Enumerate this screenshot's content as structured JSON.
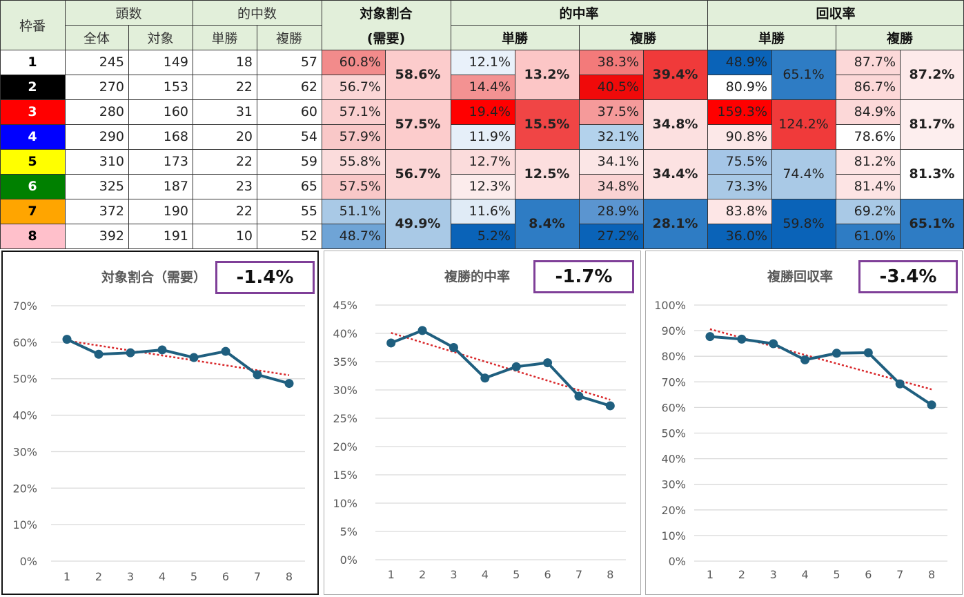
{
  "table": {
    "headers": {
      "waku": "枠番",
      "tousu": "頭数",
      "zentai": "全体",
      "taisho": "対象",
      "tekichu": "的中数",
      "tansho": "単勝",
      "fukusho": "複勝",
      "wariai": "対象割合",
      "juyo": "(需要)",
      "tekichuritsu": "的中率",
      "kaishuritsu": "回収率"
    },
    "rows": [
      {
        "waku": "1",
        "zentai": "245",
        "taisho": "149",
        "tan": "18",
        "fuku": "57",
        "wariai": "60.8%",
        "tanRate": "12.1%",
        "fukuRate": "38.3%",
        "tanRet": "48.9%",
        "fukuRet": "87.7%"
      },
      {
        "waku": "2",
        "zentai": "270",
        "taisho": "153",
        "tan": "22",
        "fuku": "62",
        "wariai": "56.7%",
        "tanRate": "14.4%",
        "fukuRate": "40.5%",
        "tanRet": "80.9%",
        "fukuRet": "86.7%"
      },
      {
        "waku": "3",
        "zentai": "280",
        "taisho": "160",
        "tan": "31",
        "fuku": "60",
        "wariai": "57.1%",
        "tanRate": "19.4%",
        "fukuRate": "37.5%",
        "tanRet": "159.3%",
        "fukuRet": "84.9%"
      },
      {
        "waku": "4",
        "zentai": "290",
        "taisho": "168",
        "tan": "20",
        "fuku": "54",
        "wariai": "57.9%",
        "tanRate": "11.9%",
        "fukuRate": "32.1%",
        "tanRet": "90.8%",
        "fukuRet": "78.6%"
      },
      {
        "waku": "5",
        "zentai": "310",
        "taisho": "173",
        "tan": "22",
        "fuku": "59",
        "wariai": "55.8%",
        "tanRate": "12.7%",
        "fukuRate": "34.1%",
        "tanRet": "75.5%",
        "fukuRet": "81.2%"
      },
      {
        "waku": "6",
        "zentai": "325",
        "taisho": "187",
        "tan": "23",
        "fuku": "65",
        "wariai": "57.5%",
        "tanRate": "12.3%",
        "fukuRate": "34.8%",
        "tanRet": "73.3%",
        "fukuRet": "81.4%"
      },
      {
        "waku": "7",
        "zentai": "372",
        "taisho": "190",
        "tan": "22",
        "fuku": "55",
        "wariai": "51.1%",
        "tanRate": "11.6%",
        "fukuRate": "28.9%",
        "tanRet": "83.8%",
        "fukuRet": "69.2%"
      },
      {
        "waku": "8",
        "zentai": "392",
        "taisho": "191",
        "tan": "10",
        "fuku": "52",
        "wariai": "48.7%",
        "tanRate": "5.2%",
        "fukuRate": "27.2%",
        "tanRet": "36.0%",
        "fukuRet": "61.0%"
      }
    ],
    "groups": [
      {
        "wariai": "58.6%",
        "tanRate": "13.2%",
        "fukuRate": "39.4%",
        "tanRet": "65.1%",
        "fukuRet": "87.2%"
      },
      {
        "wariai": "57.5%",
        "tanRate": "15.5%",
        "fukuRate": "34.8%",
        "tanRet": "124.2%",
        "fukuRet": "81.7%"
      },
      {
        "wariai": "56.7%",
        "tanRate": "12.5%",
        "fukuRate": "34.4%",
        "tanRet": "74.4%",
        "fukuRet": "81.3%"
      },
      {
        "wariai": "49.9%",
        "tanRate": "8.4%",
        "fukuRate": "28.1%",
        "tanRet": "59.8%",
        "fukuRet": "65.1%"
      }
    ],
    "frame_colors": [
      "#ffffff",
      "#000000",
      "#ff0000",
      "#0000ff",
      "#ffff00",
      "#008000",
      "#ffa500",
      "#ffc0cb"
    ],
    "frame_text_colors": [
      "#000000",
      "#ffffff",
      "#ffffff",
      "#ffffff",
      "#000000",
      "#ffffff",
      "#000000",
      "#000000"
    ],
    "row_cell_colors": {
      "wariai": [
        "#f28b8b",
        "#fbd6d6",
        "#fbd0d0",
        "#f9c8c8",
        "#fbdcdc",
        "#f9c8c8",
        "#a9c9e6",
        "#6fa4d6"
      ],
      "tanRate": [
        "#e9f1fa",
        "#f39292",
        "#ff0000",
        "#e6eff9",
        "#fbdcdc",
        "#fcecec",
        "#e0ebf6",
        "#0a63b8"
      ],
      "fukuRate": [
        "#f37a7a",
        "#f00a0a",
        "#f59a9a",
        "#b3d2ec",
        "#fbe6e6",
        "#fad3d3",
        "#5b95d0",
        "#0a63b8"
      ],
      "tanRet": [
        "#0a63b8",
        "#ffffff",
        "#ff0000",
        "#fce8e8",
        "#a5c6e7",
        "#a9c9e6",
        "#fde6e6",
        "#0a63b8"
      ],
      "fukuRet": [
        "#fcd8d8",
        "#fcd8d8",
        "#fcd8d8",
        "#ffffff",
        "#fde4e4",
        "#fde4e4",
        "#a9c9e6",
        "#2e7cc4"
      ]
    },
    "group_cell_colors": {
      "wariai": [
        "#fccccc",
        "#fccccc",
        "#fbd6d6",
        "#a9c9e6"
      ],
      "tanRate": [
        "#fcc6c6",
        "#f04545",
        "#fcdede",
        "#2e7cc4"
      ],
      "fukuRate": [
        "#f03a3a",
        "#fce0e0",
        "#fce2e2",
        "#2e7cc4"
      ],
      "tanRet": [
        "#2e7cc4",
        "#f03a3a",
        "#a9c9e6",
        "#0a63b8"
      ],
      "fukuRet": [
        "#fdeaea",
        "#fdeeee",
        "#ffffff",
        "#2e7cc4"
      ]
    }
  },
  "charts": [
    {
      "title": "対象割合（需要）",
      "diff": "-1.4%"
    },
    {
      "title": "複勝的中率",
      "diff": "-1.7%"
    },
    {
      "title": "複勝回収率",
      "diff": "-3.4%"
    }
  ],
  "chart_data": [
    {
      "type": "line",
      "title": "対象割合（需要）",
      "annotation": "-1.4%",
      "x": [
        1,
        2,
        3,
        4,
        5,
        6,
        7,
        8
      ],
      "values": [
        60.8,
        56.7,
        57.1,
        57.9,
        55.8,
        57.5,
        51.1,
        48.7
      ],
      "ylim": [
        0,
        70
      ],
      "ystep": 10,
      "trendline": "linear",
      "grid": true,
      "line_color": "#1f5f7f",
      "trend_color": "#d9282b"
    },
    {
      "type": "line",
      "title": "複勝的中率",
      "annotation": "-1.7%",
      "x": [
        1,
        2,
        3,
        4,
        5,
        6,
        7,
        8
      ],
      "values": [
        38.3,
        40.5,
        37.5,
        32.1,
        34.1,
        34.8,
        28.9,
        27.2
      ],
      "ylim": [
        0,
        45
      ],
      "ystep": 5,
      "trendline": "linear",
      "grid": true,
      "line_color": "#1f5f7f",
      "trend_color": "#d9282b"
    },
    {
      "type": "line",
      "title": "複勝回収率",
      "annotation": "-3.4%",
      "x": [
        1,
        2,
        3,
        4,
        5,
        6,
        7,
        8
      ],
      "values": [
        87.7,
        86.7,
        84.9,
        78.6,
        81.2,
        81.4,
        69.2,
        61.0
      ],
      "ylim": [
        0,
        100
      ],
      "ystep": 10,
      "trendline": "linear",
      "grid": true,
      "line_color": "#1f5f7f",
      "trend_color": "#d9282b"
    }
  ]
}
